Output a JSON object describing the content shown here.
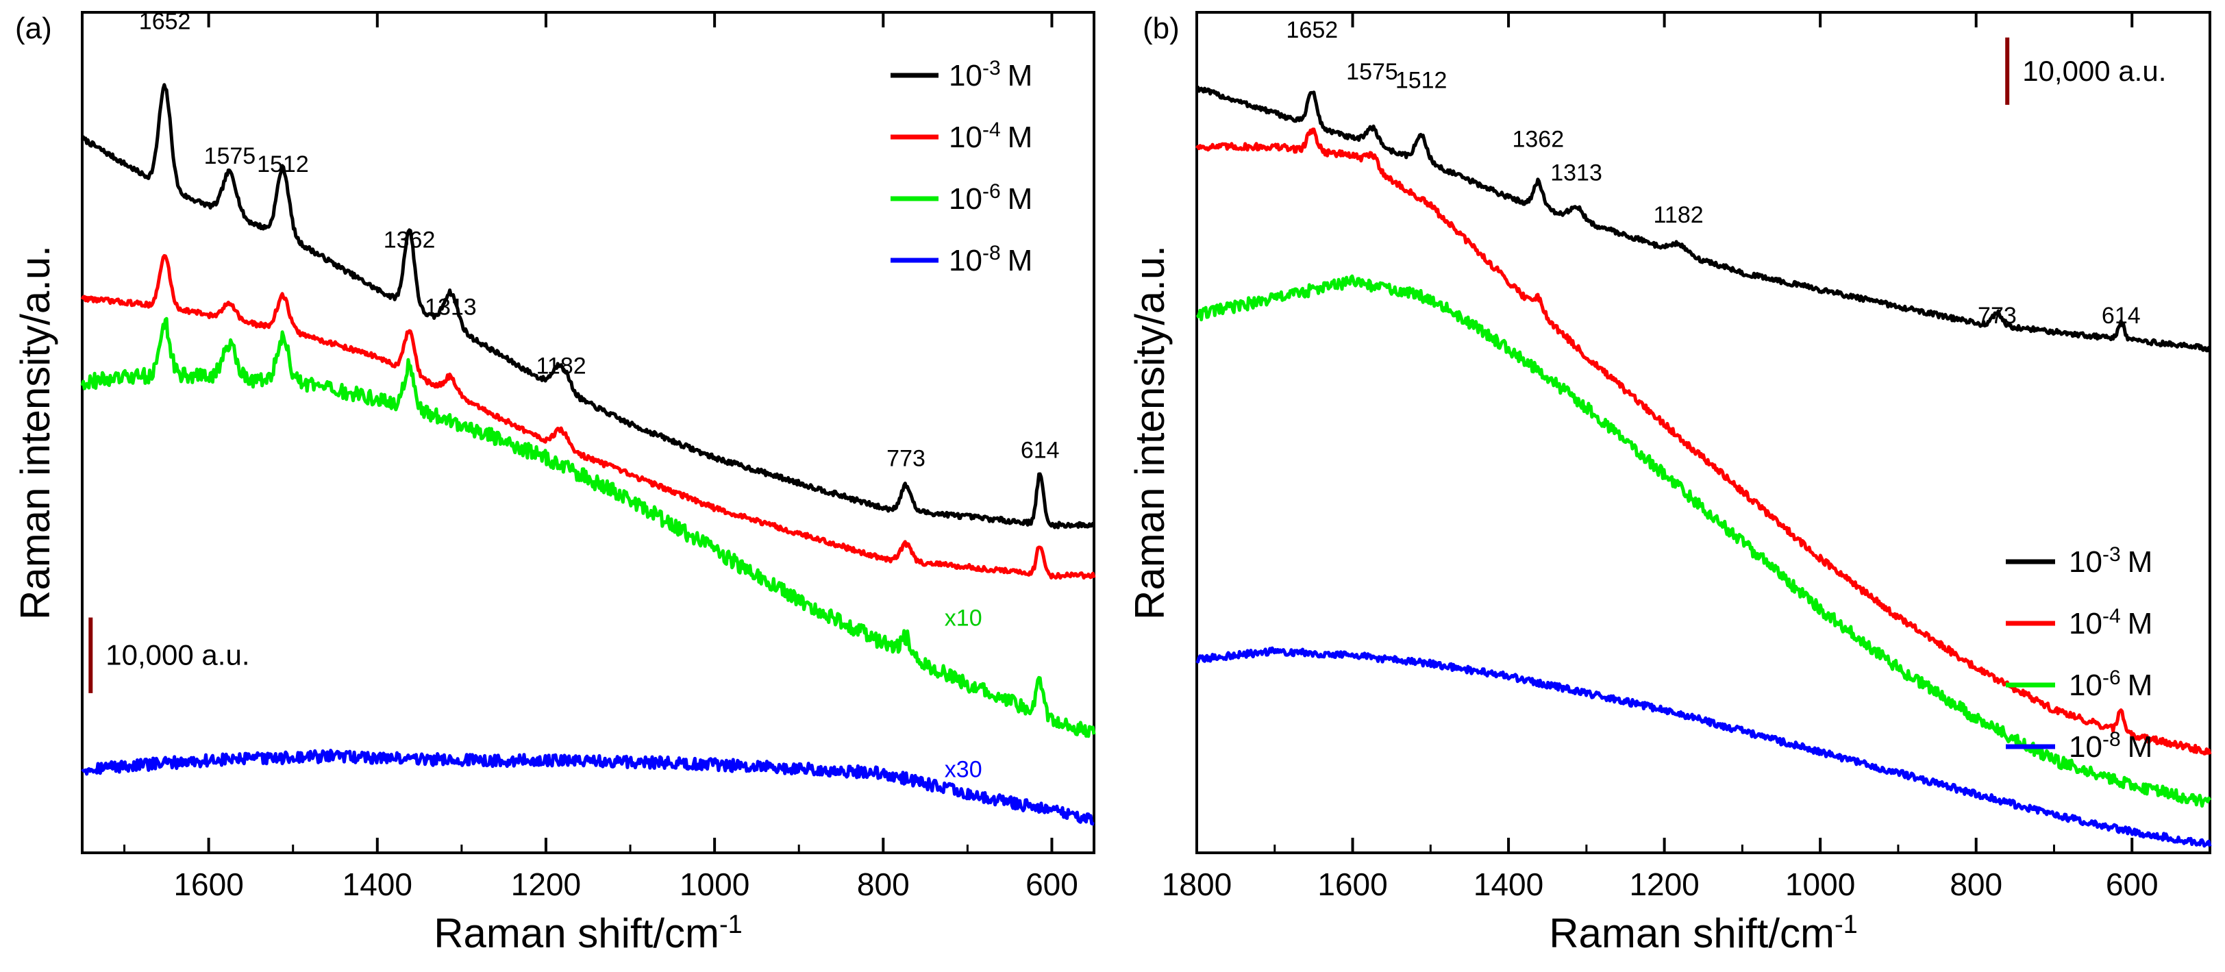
{
  "figure": {
    "panel_a_label": "(a)",
    "panel_b_label": "(b)"
  },
  "chart_data": [
    {
      "type": "line",
      "panel": "(a)",
      "xlabel": "Raman shift/cm",
      "xlabel_sup": "-1",
      "ylabel": "Raman intensity/a.u.",
      "xlim": [
        1750,
        550
      ],
      "ylim": [
        0,
        100
      ],
      "xticks": [
        1600,
        1400,
        1200,
        1000,
        800,
        600
      ],
      "legend_position": "top-right",
      "legend": [
        {
          "base": "10",
          "exp": "-3",
          "unit": "M",
          "color": "#000000"
        },
        {
          "base": "10",
          "exp": "-4",
          "unit": "M",
          "color": "#ff0000"
        },
        {
          "base": "10",
          "exp": "-6",
          "unit": "M",
          "color": "#00ee00"
        },
        {
          "base": "10",
          "exp": "-8",
          "unit": "M",
          "color": "#0000ff"
        }
      ],
      "scale_bar": {
        "label": "10,000 a.u.",
        "color": "#8b0000",
        "y_from": 19,
        "y_to": 28,
        "x": 1740
      },
      "multipliers": [
        {
          "text": "x10",
          "color": "#00cc00",
          "x": 705,
          "y": 27
        },
        {
          "text": "x30",
          "color": "#0000ff",
          "x": 705,
          "y": 9
        }
      ],
      "peak_labels": [
        {
          "text": "1652",
          "x": 1652,
          "y": 98
        },
        {
          "text": "1575",
          "x": 1575,
          "y": 82
        },
        {
          "text": "1512",
          "x": 1512,
          "y": 81
        },
        {
          "text": "1362",
          "x": 1362,
          "y": 72
        },
        {
          "text": "1313",
          "x": 1313,
          "y": 64
        },
        {
          "text": "1182",
          "x": 1182,
          "y": 57
        },
        {
          "text": "773",
          "x": 773,
          "y": 46
        },
        {
          "text": "614",
          "x": 614,
          "y": 47
        }
      ],
      "series": [
        {
          "name": "10^-3 M",
          "color": "#000000",
          "noise": 0.3,
          "baseline": [
            [
              1750,
              85
            ],
            [
              1650,
              79
            ],
            [
              1500,
              73
            ],
            [
              1400,
              67
            ],
            [
              1300,
              62
            ],
            [
              1200,
              56
            ],
            [
              1100,
              51
            ],
            [
              1000,
              47
            ],
            [
              900,
              44
            ],
            [
              800,
              41
            ],
            [
              700,
              40
            ],
            [
              600,
              39
            ],
            [
              550,
              39
            ]
          ],
          "peaks": [
            [
              1652,
              12,
              7
            ],
            [
              1575,
              5,
              8
            ],
            [
              1512,
              8,
              7
            ],
            [
              1362,
              9,
              6
            ],
            [
              1313,
              4,
              8
            ],
            [
              1182,
              3,
              9
            ],
            [
              773,
              3,
              6
            ],
            [
              614,
              6,
              4
            ]
          ]
        },
        {
          "name": "10^-4 M",
          "color": "#ff0000",
          "noise": 0.3,
          "baseline": [
            [
              1750,
              66
            ],
            [
              1650,
              65
            ],
            [
              1500,
              62
            ],
            [
              1400,
              59
            ],
            [
              1300,
              54
            ],
            [
              1200,
              49
            ],
            [
              1100,
              45
            ],
            [
              1000,
              41
            ],
            [
              900,
              38
            ],
            [
              800,
              35
            ],
            [
              700,
              34
            ],
            [
              600,
              33
            ],
            [
              550,
              33
            ]
          ],
          "peaks": [
            [
              1652,
              6,
              6
            ],
            [
              1575,
              2,
              7
            ],
            [
              1512,
              4,
              7
            ],
            [
              1362,
              5,
              6
            ],
            [
              1313,
              2,
              7
            ],
            [
              1182,
              2,
              8
            ],
            [
              773,
              2,
              6
            ],
            [
              614,
              3.5,
              4
            ]
          ]
        },
        {
          "name": "10^-6 M",
          "color": "#00ee00",
          "noise": 0.9,
          "baseline": [
            [
              1750,
              56
            ],
            [
              1650,
              57
            ],
            [
              1500,
              56
            ],
            [
              1400,
              54
            ],
            [
              1300,
              51
            ],
            [
              1200,
              47
            ],
            [
              1100,
              42
            ],
            [
              1000,
              36
            ],
            [
              900,
              30
            ],
            [
              800,
              25
            ],
            [
              700,
              20
            ],
            [
              600,
              16
            ],
            [
              550,
              14
            ]
          ],
          "peaks": [
            [
              1652,
              6,
              6
            ],
            [
              1575,
              4,
              8
            ],
            [
              1512,
              5,
              7
            ],
            [
              1362,
              5,
              6
            ],
            [
              773,
              2,
              6
            ],
            [
              614,
              4,
              4
            ]
          ]
        },
        {
          "name": "10^-8 M",
          "color": "#0000ff",
          "noise": 0.7,
          "baseline": [
            [
              1750,
              10
            ],
            [
              1600,
              11
            ],
            [
              1450,
              11.5
            ],
            [
              1300,
              11
            ],
            [
              1150,
              11
            ],
            [
              1000,
              10.5
            ],
            [
              900,
              10
            ],
            [
              800,
              9.5
            ],
            [
              700,
              7
            ],
            [
              600,
              5
            ],
            [
              550,
              4
            ]
          ],
          "peaks": []
        }
      ]
    },
    {
      "type": "line",
      "panel": "(b)",
      "xlabel": "Raman shift/cm",
      "xlabel_sup": "-1",
      "ylabel": "Raman intensity/a.u.",
      "xlim": [
        1800,
        500
      ],
      "ylim": [
        0,
        100
      ],
      "xticks": [
        1800,
        1600,
        1400,
        1200,
        1000,
        800,
        600
      ],
      "legend_position": "bottom-right",
      "legend": [
        {
          "base": "10",
          "exp": "-3",
          "unit": "M",
          "color": "#000000"
        },
        {
          "base": "10",
          "exp": "-4",
          "unit": "M",
          "color": "#ff0000"
        },
        {
          "base": "10",
          "exp": "-6",
          "unit": "M",
          "color": "#00ee00"
        },
        {
          "base": "10",
          "exp": "-8",
          "unit": "M",
          "color": "#0000ff"
        }
      ],
      "scale_bar": {
        "label": "10,000 a.u.",
        "color": "#8b0000",
        "y_from": 89,
        "y_to": 97,
        "x": 760
      },
      "multipliers": [],
      "peak_labels": [
        {
          "text": "1652",
          "x": 1652,
          "y": 97
        },
        {
          "text": "1575",
          "x": 1575,
          "y": 92
        },
        {
          "text": "1512",
          "x": 1512,
          "y": 91
        },
        {
          "text": "1362",
          "x": 1362,
          "y": 84
        },
        {
          "text": "1313",
          "x": 1313,
          "y": 80
        },
        {
          "text": "1182",
          "x": 1182,
          "y": 75
        },
        {
          "text": "773",
          "x": 773,
          "y": 63
        },
        {
          "text": "614",
          "x": 614,
          "y": 63
        }
      ],
      "series": [
        {
          "name": "10^-3 M",
          "color": "#000000",
          "noise": 0.3,
          "baseline": [
            [
              1800,
              91
            ],
            [
              1700,
              88
            ],
            [
              1600,
              85
            ],
            [
              1500,
              82
            ],
            [
              1400,
              78
            ],
            [
              1300,
              75
            ],
            [
              1200,
              72
            ],
            [
              1100,
              69
            ],
            [
              1000,
              67
            ],
            [
              900,
              65
            ],
            [
              800,
              63
            ],
            [
              700,
              62
            ],
            [
              600,
              61
            ],
            [
              500,
              60
            ]
          ],
          "peaks": [
            [
              1652,
              4,
              6
            ],
            [
              1575,
              2,
              8
            ],
            [
              1512,
              3,
              7
            ],
            [
              1362,
              3,
              6
            ],
            [
              1313,
              1.5,
              8
            ],
            [
              1182,
              1,
              9
            ],
            [
              773,
              1.5,
              6
            ],
            [
              614,
              2,
              4
            ]
          ]
        },
        {
          "name": "10^-4 M",
          "color": "#ff0000",
          "noise": 0.4,
          "baseline": [
            [
              1800,
              84
            ],
            [
              1700,
              84
            ],
            [
              1600,
              83
            ],
            [
              1500,
              77
            ],
            [
              1400,
              68
            ],
            [
              1300,
              59
            ],
            [
              1200,
              51
            ],
            [
              1100,
              43
            ],
            [
              1000,
              35
            ],
            [
              900,
              28
            ],
            [
              800,
              22
            ],
            [
              700,
              17
            ],
            [
              600,
              14
            ],
            [
              500,
              12
            ]
          ],
          "peaks": [
            [
              1652,
              2.5,
              6
            ],
            [
              1575,
              1.5,
              8
            ],
            [
              1362,
              1.5,
              6
            ],
            [
              614,
              2.5,
              4
            ]
          ]
        },
        {
          "name": "10^-6 M",
          "color": "#00ee00",
          "noise": 0.7,
          "baseline": [
            [
              1800,
              64
            ],
            [
              1700,
              66
            ],
            [
              1600,
              68
            ],
            [
              1500,
              66
            ],
            [
              1400,
              60
            ],
            [
              1300,
              53
            ],
            [
              1200,
              45
            ],
            [
              1100,
              37
            ],
            [
              1000,
              29
            ],
            [
              900,
              22
            ],
            [
              800,
              16
            ],
            [
              700,
              11
            ],
            [
              600,
              8
            ],
            [
              500,
              6
            ]
          ],
          "peaks": []
        },
        {
          "name": "10^-8 M",
          "color": "#0000ff",
          "noise": 0.4,
          "baseline": [
            [
              1800,
              23
            ],
            [
              1700,
              24
            ],
            [
              1600,
              23.5
            ],
            [
              1500,
              22.5
            ],
            [
              1400,
              21
            ],
            [
              1300,
              19
            ],
            [
              1200,
              17
            ],
            [
              1100,
              14.5
            ],
            [
              1000,
              12
            ],
            [
              900,
              9.5
            ],
            [
              800,
              7
            ],
            [
              700,
              4.5
            ],
            [
              600,
              2.5
            ],
            [
              500,
              1
            ]
          ],
          "peaks": []
        }
      ]
    }
  ]
}
